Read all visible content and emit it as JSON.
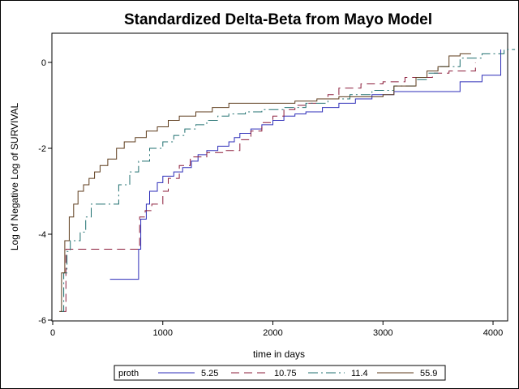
{
  "chart_data": {
    "type": "line",
    "title": "Standardized Delta-Beta from Mayo Model",
    "xlabel": "time in days",
    "ylabel": "Log of Negative Log of SURVIVAL",
    "xlim": [
      0,
      4200
    ],
    "ylim": [
      -6,
      0.6
    ],
    "x_ticks": [
      0,
      1000,
      2000,
      3000,
      4000
    ],
    "y_ticks": [
      -6,
      -4,
      -2,
      0
    ],
    "step": true,
    "legend": {
      "title": "proth",
      "placement": "bottom"
    },
    "series": [
      {
        "name": "5.25",
        "color": "#2b2bb8",
        "dash": "",
        "x": [
          520,
          770,
          780,
          800,
          850,
          880,
          950,
          1000,
          1100,
          1180,
          1260,
          1320,
          1400,
          1500,
          1600,
          1650,
          1700,
          1800,
          1900,
          2000,
          2100,
          2200,
          2300,
          2450,
          2600,
          2750,
          2900,
          3100,
          3500,
          3700,
          3900,
          4050,
          4070
        ],
        "y": [
          -5.05,
          -5.05,
          -4.35,
          -3.65,
          -3.3,
          -3.0,
          -2.8,
          -2.65,
          -2.55,
          -2.45,
          -2.3,
          -2.15,
          -2.05,
          -1.95,
          -1.85,
          -1.75,
          -1.65,
          -1.55,
          -1.45,
          -1.35,
          -1.25,
          -1.2,
          -1.15,
          -1.05,
          -0.95,
          -0.85,
          -0.75,
          -0.68,
          -0.68,
          -0.45,
          -0.3,
          -0.3,
          0.3
        ]
      },
      {
        "name": "10.75",
        "color": "#8b1c3a",
        "dash": "10,6",
        "x": [
          90,
          120,
          760,
          790,
          840,
          900,
          1000,
          1050,
          1150,
          1250,
          1400,
          1550,
          1700,
          1800,
          1900,
          2000,
          2100,
          2200,
          2300,
          2400,
          2500,
          2600,
          2800,
          3000,
          3200,
          3450,
          3600,
          3800,
          3840
        ],
        "y": [
          -5.8,
          -4.35,
          -4.35,
          -3.6,
          -3.45,
          -3.3,
          -3.0,
          -2.7,
          -2.4,
          -2.2,
          -2.1,
          -2.05,
          -1.8,
          -1.6,
          -1.4,
          -1.25,
          -1.1,
          -1.0,
          -0.95,
          -0.85,
          -0.75,
          -0.6,
          -0.5,
          -0.45,
          -0.35,
          -0.25,
          -0.2,
          -0.2,
          0.0
        ]
      },
      {
        "name": "11.4",
        "color": "#1f6f6f",
        "dash": "12,4,2,4",
        "x": [
          70,
          100,
          130,
          160,
          250,
          300,
          350,
          520,
          600,
          700,
          780,
          880,
          1000,
          1100,
          1200,
          1300,
          1400,
          1500,
          1600,
          1750,
          1900,
          2100,
          2300,
          2500,
          2700,
          2900,
          3100,
          3300,
          3400,
          3500,
          3700,
          3900,
          4100,
          4200
        ],
        "y": [
          -5.8,
          -4.9,
          -4.4,
          -4.15,
          -3.95,
          -3.6,
          -3.3,
          -3.3,
          -2.85,
          -2.55,
          -2.3,
          -2.0,
          -1.85,
          -1.7,
          -1.55,
          -1.45,
          -1.35,
          -1.25,
          -1.2,
          -1.15,
          -1.1,
          -1.05,
          -0.95,
          -0.85,
          -0.75,
          -0.65,
          -0.55,
          -0.4,
          -0.25,
          -0.1,
          0.1,
          0.2,
          0.3,
          0.3
        ]
      },
      {
        "name": "55.9",
        "color": "#5c3a1a",
        "dash": "",
        "x": [
          60,
          80,
          110,
          150,
          190,
          230,
          280,
          330,
          380,
          430,
          500,
          580,
          650,
          750,
          850,
          950,
          1050,
          1150,
          1300,
          1450,
          1600,
          1800,
          2000,
          2200,
          2400,
          2600,
          2800,
          3000,
          3100,
          3300,
          3400,
          3500,
          3600,
          3700,
          3800
        ],
        "y": [
          -5.8,
          -4.9,
          -4.15,
          -3.6,
          -3.3,
          -3.0,
          -2.85,
          -2.7,
          -2.55,
          -2.4,
          -2.25,
          -2.0,
          -1.85,
          -1.75,
          -1.6,
          -1.5,
          -1.35,
          -1.25,
          -1.15,
          -1.05,
          -0.95,
          -0.95,
          -0.95,
          -0.9,
          -0.85,
          -0.8,
          -0.8,
          -0.75,
          -0.55,
          -0.35,
          -0.2,
          -0.1,
          0.15,
          0.2,
          0.2
        ]
      }
    ]
  }
}
